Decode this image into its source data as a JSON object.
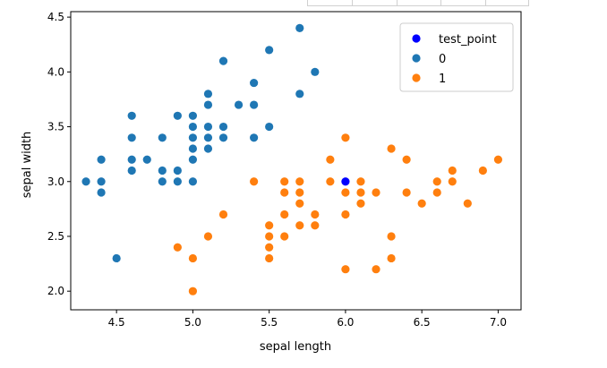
{
  "chart_data": {
    "type": "scatter",
    "title": "",
    "xlabel": "sepal length",
    "ylabel": "sepal width",
    "xlim": [
      4.2,
      7.15
    ],
    "ylim": [
      1.83,
      4.55
    ],
    "xticks": [
      4.5,
      5.0,
      5.5,
      6.0,
      6.5,
      7.0
    ],
    "xtick_labels": [
      "4.5",
      "5.0",
      "5.5",
      "6.0",
      "6.5",
      "7.0"
    ],
    "yticks": [
      2.0,
      2.5,
      3.0,
      3.5,
      4.0,
      4.5
    ],
    "ytick_labels": [
      "2.0",
      "2.5",
      "3.0",
      "3.5",
      "4.0",
      "4.5"
    ],
    "grid": false,
    "legend_position": "top-right",
    "series": [
      {
        "name": "0",
        "color": "#1f77b4",
        "points": [
          [
            4.3,
            3.0
          ],
          [
            4.4,
            2.9
          ],
          [
            4.4,
            3.0
          ],
          [
            4.4,
            3.2
          ],
          [
            4.5,
            2.3
          ],
          [
            4.6,
            3.1
          ],
          [
            4.6,
            3.2
          ],
          [
            4.6,
            3.4
          ],
          [
            4.6,
            3.6
          ],
          [
            4.7,
            3.2
          ],
          [
            4.8,
            3.0
          ],
          [
            4.8,
            3.1
          ],
          [
            4.8,
            3.4
          ],
          [
            4.9,
            3.0
          ],
          [
            4.9,
            3.1
          ],
          [
            4.9,
            3.6
          ],
          [
            5.0,
            3.0
          ],
          [
            5.0,
            3.2
          ],
          [
            5.0,
            3.3
          ],
          [
            5.0,
            3.4
          ],
          [
            5.0,
            3.5
          ],
          [
            5.0,
            3.6
          ],
          [
            5.1,
            3.3
          ],
          [
            5.1,
            3.4
          ],
          [
            5.1,
            3.5
          ],
          [
            5.1,
            3.7
          ],
          [
            5.1,
            3.8
          ],
          [
            5.2,
            3.4
          ],
          [
            5.2,
            3.5
          ],
          [
            5.2,
            4.1
          ],
          [
            5.3,
            3.7
          ],
          [
            5.4,
            3.4
          ],
          [
            5.4,
            3.7
          ],
          [
            5.4,
            3.9
          ],
          [
            5.5,
            3.5
          ],
          [
            5.5,
            4.2
          ],
          [
            5.7,
            3.8
          ],
          [
            5.7,
            4.4
          ],
          [
            5.8,
            4.0
          ]
        ]
      },
      {
        "name": "1",
        "color": "#ff7f0e",
        "points": [
          [
            4.9,
            2.4
          ],
          [
            5.0,
            2.0
          ],
          [
            5.0,
            2.3
          ],
          [
            5.1,
            2.5
          ],
          [
            5.2,
            2.7
          ],
          [
            5.4,
            3.0
          ],
          [
            5.5,
            2.3
          ],
          [
            5.5,
            2.4
          ],
          [
            5.5,
            2.5
          ],
          [
            5.5,
            2.6
          ],
          [
            5.6,
            2.5
          ],
          [
            5.6,
            2.7
          ],
          [
            5.6,
            2.9
          ],
          [
            5.6,
            3.0
          ],
          [
            5.7,
            2.6
          ],
          [
            5.7,
            2.8
          ],
          [
            5.7,
            2.9
          ],
          [
            5.7,
            3.0
          ],
          [
            5.8,
            2.6
          ],
          [
            5.8,
            2.7
          ],
          [
            5.9,
            3.0
          ],
          [
            5.9,
            3.2
          ],
          [
            6.0,
            2.2
          ],
          [
            6.0,
            2.7
          ],
          [
            6.0,
            2.9
          ],
          [
            6.0,
            3.4
          ],
          [
            6.1,
            2.8
          ],
          [
            6.1,
            2.9
          ],
          [
            6.1,
            3.0
          ],
          [
            6.2,
            2.2
          ],
          [
            6.2,
            2.9
          ],
          [
            6.3,
            2.3
          ],
          [
            6.3,
            2.5
          ],
          [
            6.3,
            3.3
          ],
          [
            6.4,
            2.9
          ],
          [
            6.4,
            3.2
          ],
          [
            6.5,
            2.8
          ],
          [
            6.6,
            2.9
          ],
          [
            6.6,
            3.0
          ],
          [
            6.7,
            3.0
          ],
          [
            6.7,
            3.1
          ],
          [
            6.8,
            2.8
          ],
          [
            6.9,
            3.1
          ],
          [
            7.0,
            3.2
          ]
        ]
      },
      {
        "name": "test_point",
        "color": "#0000ff",
        "points": [
          [
            6.0,
            3.0
          ]
        ]
      }
    ],
    "legend_order": [
      "test_point",
      "0",
      "1"
    ]
  }
}
